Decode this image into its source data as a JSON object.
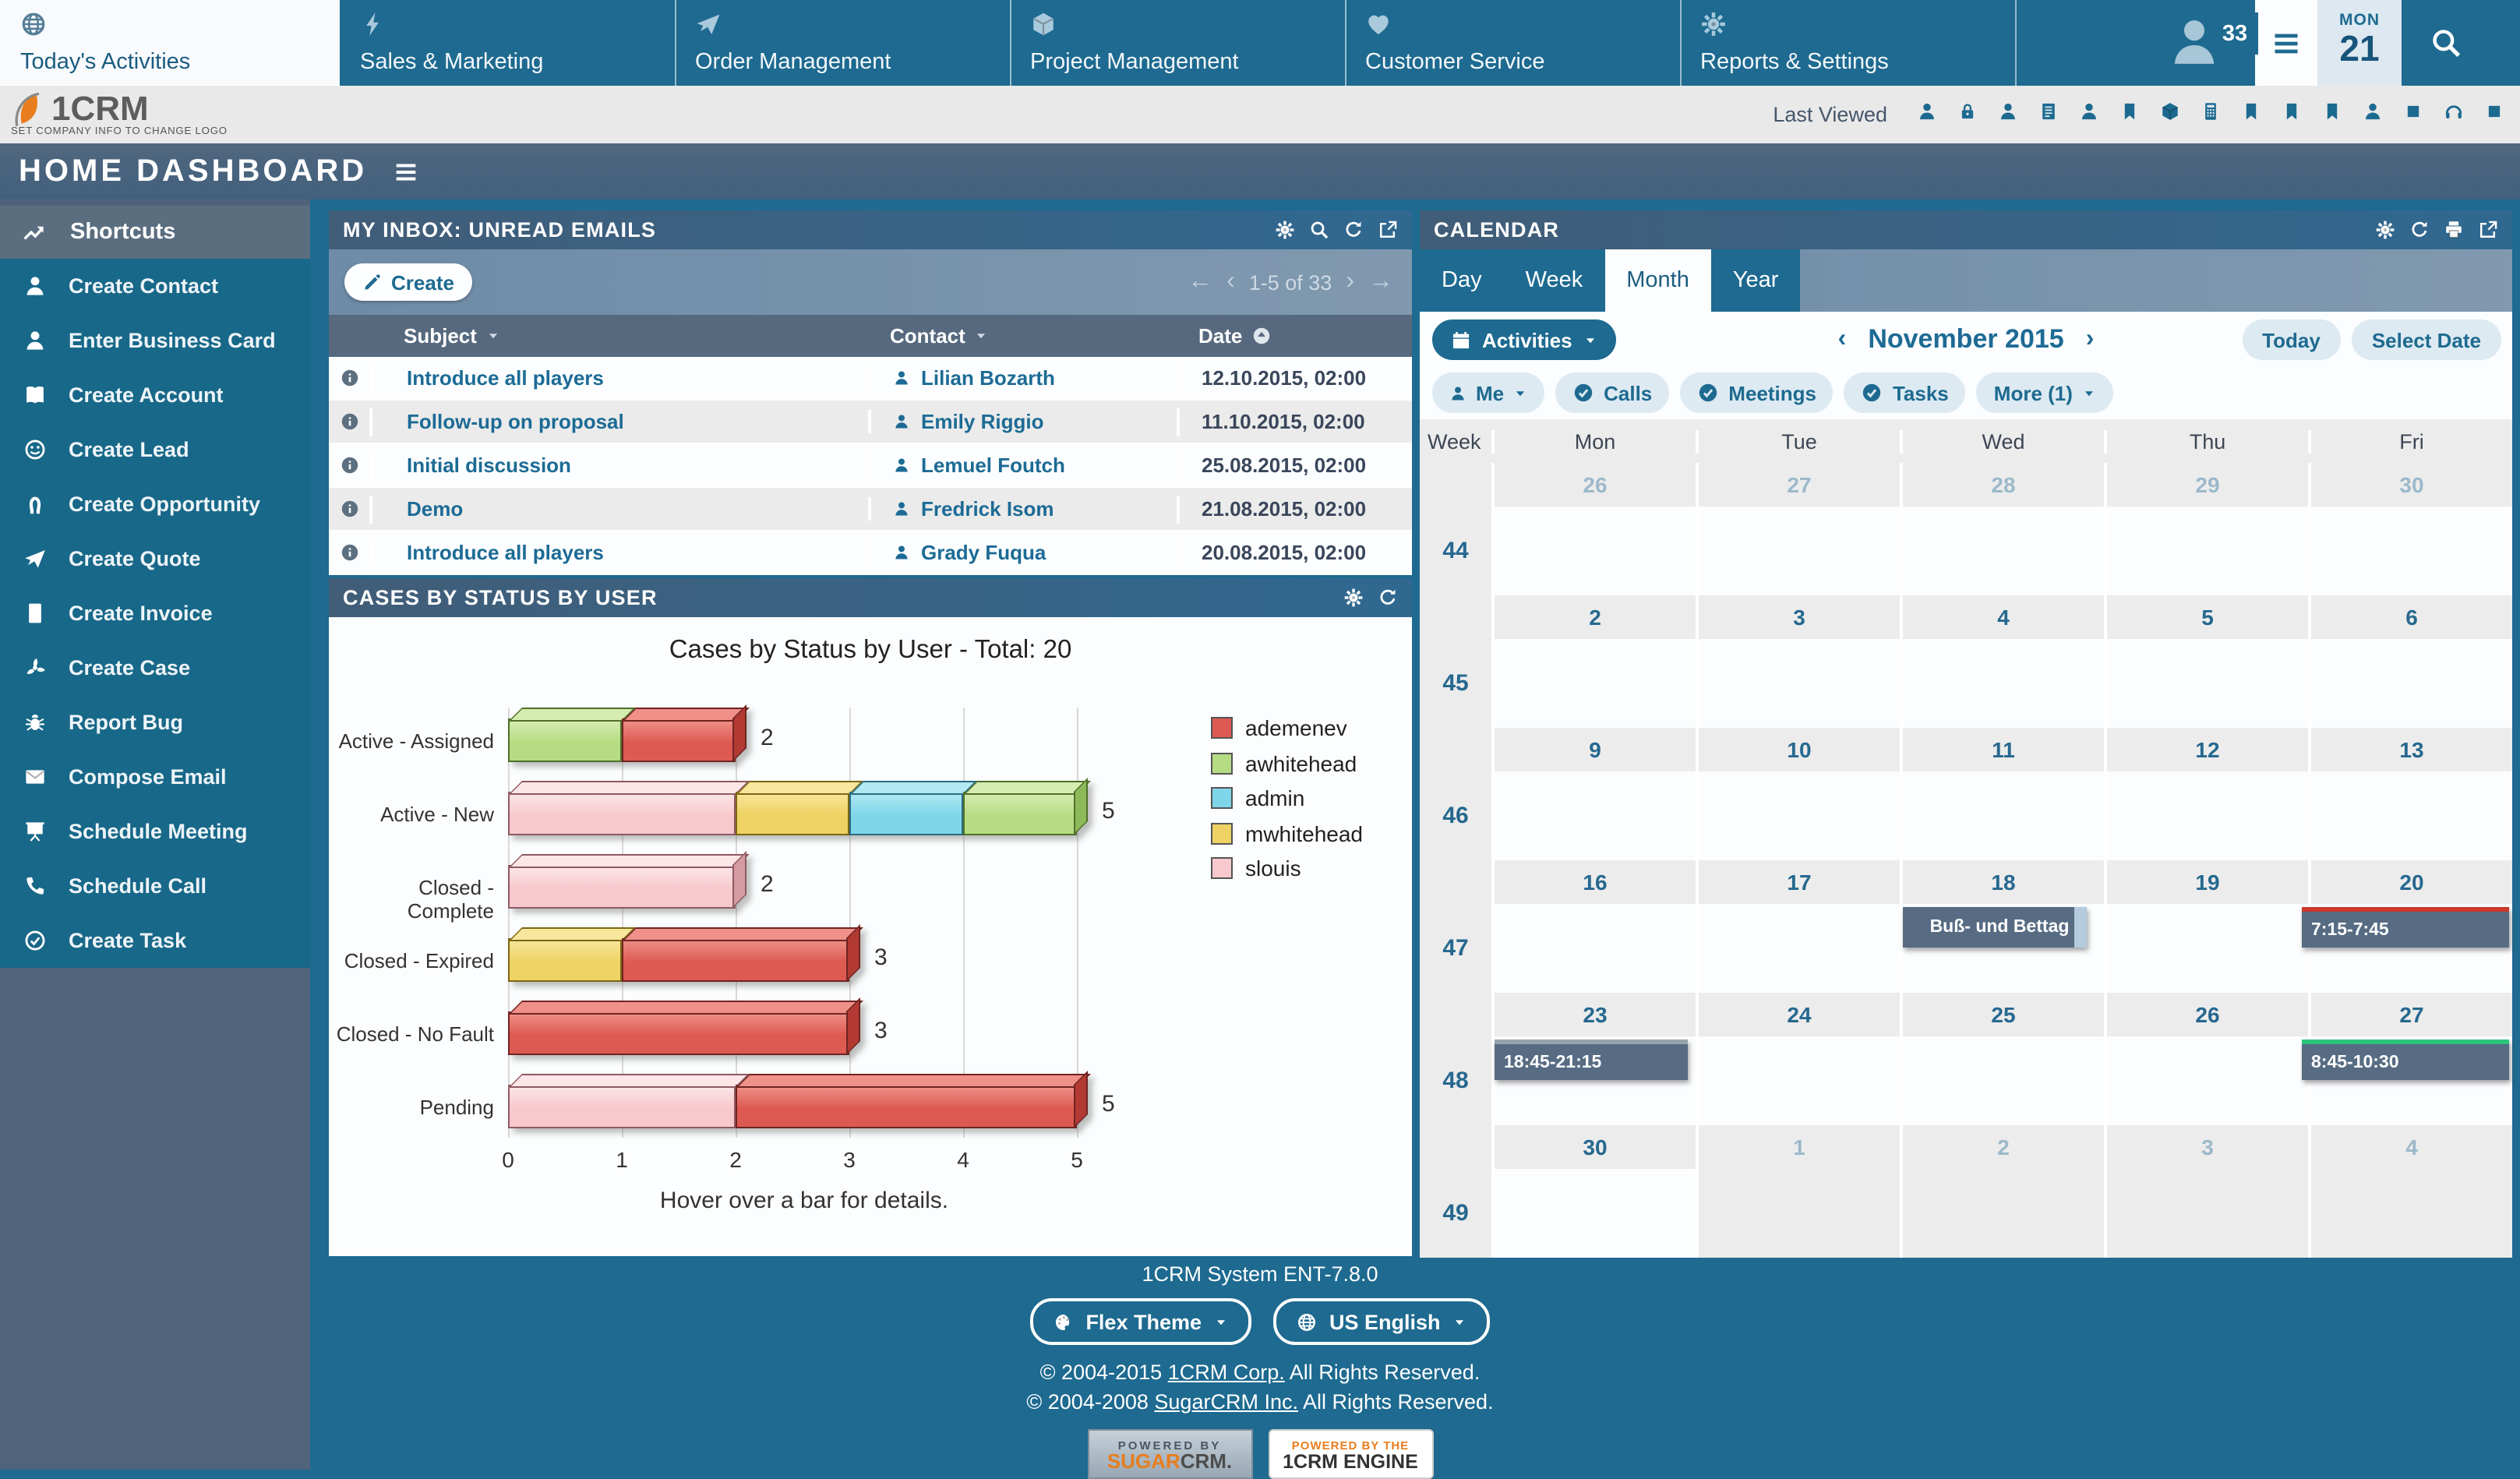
{
  "colors": {
    "accent_teal": "#1e6a90",
    "slate": "#51637b",
    "panel_header_from": "#415d78",
    "panel_header_to": "#306890",
    "chip_bg": "#ddeaf2",
    "event_bg": "#576c83",
    "event_red": "#c8382d",
    "event_gray": "#98a2ab",
    "event_green": "#2ec47c"
  },
  "nav": {
    "tabs": [
      {
        "label": "Today's Activities",
        "icon": "globe",
        "active": true
      },
      {
        "label": "Sales & Marketing",
        "icon": "bolt",
        "active": false
      },
      {
        "label": "Order Management",
        "icon": "plane",
        "active": false
      },
      {
        "label": "Project Management",
        "icon": "cube",
        "active": false
      },
      {
        "label": "Customer Service",
        "icon": "heart",
        "active": false
      },
      {
        "label": "Reports & Settings",
        "icon": "gear",
        "active": false
      }
    ],
    "notification_count": "33",
    "weekday": "MON",
    "day": "21"
  },
  "logo_bar": {
    "brand": "1CRM",
    "brand_note": "SET COMPANY INFO TO CHANGE LOGO",
    "last_viewed_label": "Last Viewed",
    "last_viewed_icons": [
      "user",
      "lock",
      "user",
      "list",
      "user",
      "bookmark",
      "cube",
      "calculator",
      "bookmark",
      "bookmark",
      "bookmark",
      "user",
      "square",
      "headset",
      "square"
    ]
  },
  "page_title": "HOME DASHBOARD",
  "sidebar": {
    "header": "Shortcuts",
    "items": [
      {
        "icon": "user",
        "label": "Create Contact"
      },
      {
        "icon": "user",
        "label": "Enter Business Card"
      },
      {
        "icon": "book",
        "label": "Create Account"
      },
      {
        "icon": "smiley",
        "label": "Create Lead"
      },
      {
        "icon": "horseshoe",
        "label": "Create Opportunity"
      },
      {
        "icon": "plane",
        "label": "Create Quote"
      },
      {
        "icon": "calculator",
        "label": "Create Invoice"
      },
      {
        "icon": "fan",
        "label": "Create Case"
      },
      {
        "icon": "bug",
        "label": "Report Bug"
      },
      {
        "icon": "envelope",
        "label": "Compose Email"
      },
      {
        "icon": "presentation",
        "label": "Schedule Meeting"
      },
      {
        "icon": "phone",
        "label": "Schedule Call"
      },
      {
        "icon": "check-circle",
        "label": "Create Task"
      }
    ]
  },
  "inbox": {
    "title": "MY INBOX: UNREAD EMAILS",
    "header_icons": [
      "gear",
      "search",
      "refresh",
      "external"
    ],
    "create_label": "Create",
    "pagination": {
      "first": "←",
      "prev": "‹",
      "label": "1-5 of 33",
      "next": "›",
      "last": "→"
    },
    "columns": [
      "Subject",
      "Contact",
      "Date"
    ],
    "rows": [
      {
        "subject": "Introduce all players",
        "contact": "Lilian Bozarth",
        "date": "12.10.2015, 02:00"
      },
      {
        "subject": "Follow-up on proposal",
        "contact": "Emily Riggio",
        "date": "11.10.2015, 02:00"
      },
      {
        "subject": "Initial discussion",
        "contact": "Lemuel Foutch",
        "date": "25.08.2015, 02:00"
      },
      {
        "subject": "Demo",
        "contact": "Fredrick Isom",
        "date": "21.08.2015, 02:00"
      },
      {
        "subject": "Introduce all players",
        "contact": "Grady Fuqua",
        "date": "20.08.2015, 02:00"
      }
    ]
  },
  "cases_panel": {
    "title": "CASES BY STATUS BY USER",
    "header_icons": [
      "gear",
      "refresh"
    ],
    "chart_data": {
      "type": "bar",
      "orientation": "horizontal",
      "stacked": true,
      "title": "Cases by Status by User - Total: 20",
      "note": "Hover over a bar for details.",
      "categories": [
        "Active - Assigned",
        "Active - New",
        "Closed - Complete",
        "Closed - Expired",
        "Closed - No Fault",
        "Pending"
      ],
      "totals": [
        2,
        5,
        2,
        3,
        3,
        5
      ],
      "series": [
        {
          "name": "ademenev",
          "color": "#dc5a52",
          "light": "#ef9189",
          "dark": "#b23a33",
          "border": "#6f2421",
          "values": [
            1,
            0,
            0,
            2,
            3,
            3
          ]
        },
        {
          "name": "awhitehead",
          "color": "#b6dc83",
          "light": "#d5ecb0",
          "dark": "#8eb95a",
          "border": "#4f6f2a",
          "values": [
            1,
            1,
            0,
            0,
            0,
            0
          ]
        },
        {
          "name": "admin",
          "color": "#7fd6e9",
          "light": "#b0e8f3",
          "dark": "#54abc4",
          "border": "#2a6b80",
          "values": [
            0,
            1,
            0,
            0,
            0,
            0
          ]
        },
        {
          "name": "mwhitehead",
          "color": "#eed263",
          "light": "#f7e69c",
          "dark": "#c7a838",
          "border": "#7d6614",
          "values": [
            0,
            1,
            0,
            1,
            0,
            0
          ]
        },
        {
          "name": "slouis",
          "color": "#f7c8cd",
          "light": "#fce6e8",
          "dark": "#d49ba2",
          "border": "#8e5a61",
          "values": [
            0,
            2,
            2,
            0,
            0,
            2
          ]
        }
      ],
      "xticks": [
        0,
        1,
        2,
        3,
        4,
        5
      ],
      "xlim": [
        0,
        5
      ],
      "legend_position": "right"
    }
  },
  "calendar": {
    "title": "CALENDAR",
    "header_icons": [
      "gear",
      "refresh",
      "print",
      "external"
    ],
    "tabs": [
      {
        "label": "Day",
        "active": false
      },
      {
        "label": "Week",
        "active": false
      },
      {
        "label": "Month",
        "active": true
      },
      {
        "label": "Year",
        "active": false
      }
    ],
    "activities_label": "Activities",
    "prev": "‹",
    "month_label": "November 2015",
    "next": "›",
    "today_label": "Today",
    "select_date_label": "Select Date",
    "filters": [
      {
        "label": "Me",
        "icon": "user",
        "caret": true
      },
      {
        "label": "Calls",
        "icon": "check-filled",
        "caret": false
      },
      {
        "label": "Meetings",
        "icon": "check-filled",
        "caret": false
      },
      {
        "label": "Tasks",
        "icon": "check-filled",
        "caret": false
      },
      {
        "label": "More (1)",
        "icon": "",
        "caret": true
      }
    ],
    "day_headers": [
      "Week",
      "Mon",
      "Tue",
      "Wed",
      "Thu",
      "Fri"
    ],
    "weeks": [
      {
        "num": "44",
        "dates": [
          {
            "d": "26",
            "muted": true
          },
          {
            "d": "27",
            "muted": true
          },
          {
            "d": "28",
            "muted": true
          },
          {
            "d": "29",
            "muted": true
          },
          {
            "d": "30",
            "muted": true
          }
        ],
        "out_cells": [
          false,
          false,
          false,
          false,
          false
        ],
        "events": []
      },
      {
        "num": "45",
        "dates": [
          {
            "d": "2",
            "muted": false
          },
          {
            "d": "3",
            "muted": false
          },
          {
            "d": "4",
            "muted": false
          },
          {
            "d": "5",
            "muted": false
          },
          {
            "d": "6",
            "muted": false
          }
        ],
        "out_cells": [
          false,
          false,
          false,
          false,
          false
        ],
        "events": []
      },
      {
        "num": "46",
        "dates": [
          {
            "d": "9",
            "muted": false
          },
          {
            "d": "10",
            "muted": false
          },
          {
            "d": "11",
            "muted": false
          },
          {
            "d": "12",
            "muted": false
          },
          {
            "d": "13",
            "muted": false
          }
        ],
        "out_cells": [
          false,
          false,
          false,
          false,
          false
        ],
        "events": []
      },
      {
        "num": "47",
        "dates": [
          {
            "d": "16",
            "muted": false
          },
          {
            "d": "17",
            "muted": false
          },
          {
            "d": "18",
            "muted": false
          },
          {
            "d": "19",
            "muted": false
          },
          {
            "d": "20",
            "muted": false
          }
        ],
        "out_cells": [
          false,
          false,
          false,
          false,
          false
        ],
        "events": [
          {
            "col": 2,
            "label": "Buß- und Bettag",
            "accent": "",
            "continues": true
          },
          {
            "col": 4,
            "label": "7:15-7:45",
            "accent": "#c8382d",
            "continues": false
          }
        ]
      },
      {
        "num": "48",
        "dates": [
          {
            "d": "23",
            "muted": false
          },
          {
            "d": "24",
            "muted": false
          },
          {
            "d": "25",
            "muted": false
          },
          {
            "d": "26",
            "muted": false
          },
          {
            "d": "27",
            "muted": false
          }
        ],
        "out_cells": [
          false,
          false,
          false,
          false,
          false
        ],
        "events": [
          {
            "col": 0,
            "label": "18:45-21:15",
            "accent": "#98a2ab",
            "continues": false
          },
          {
            "col": 4,
            "label": "8:45-10:30",
            "accent": "#2ec47c",
            "continues": false
          }
        ]
      },
      {
        "num": "49",
        "dates": [
          {
            "d": "30",
            "muted": false
          },
          {
            "d": "1",
            "muted": true
          },
          {
            "d": "2",
            "muted": true
          },
          {
            "d": "3",
            "muted": true
          },
          {
            "d": "4",
            "muted": true
          }
        ],
        "out_cells": [
          false,
          true,
          true,
          true,
          true
        ],
        "events": []
      }
    ]
  },
  "footer": {
    "version": "1CRM System ENT-7.8.0",
    "theme_label": "Flex Theme",
    "language_label": "US English",
    "copyright1_prefix": "© 2004-2015 ",
    "copyright1_link": "1CRM Corp.",
    "copyright1_suffix": " All Rights Reserved.",
    "copyright2_prefix": "© 2004-2008 ",
    "copyright2_link": "SugarCRM Inc.",
    "copyright2_suffix": " All Rights Reserved.",
    "badge_sugar_line1": "POWERED BY",
    "badge_sugar_line2a": "SUGAR",
    "badge_sugar_line2b": "CRM.",
    "badge_engine_line1": "POWERED BY THE",
    "badge_engine_line2": "1CRM ENGINE"
  }
}
